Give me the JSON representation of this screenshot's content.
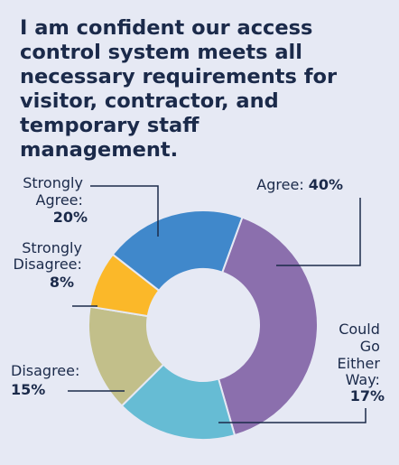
{
  "chart_data": {
    "type": "pie",
    "style": "donut",
    "title_lines": [
      "I am confident our access",
      "control system meets all",
      "necessary requirements for",
      "visitor, contractor, and",
      "temporary staff",
      "management."
    ],
    "start_angle_deg": 20,
    "direction": "clockwise",
    "slices": [
      {
        "category": "Agree",
        "value": 40,
        "color": "#8b6fad",
        "label_lines": [
          "Agree:"
        ],
        "value_label": "40%"
      },
      {
        "category": "Could Either Way",
        "value": 17,
        "color": "#66bcd4",
        "label_lines": [
          "Could",
          "Go",
          "Either",
          "Way:"
        ],
        "value_label": "17%"
      },
      {
        "category": "Disagree",
        "value": 15,
        "color": "#c2bf8a",
        "label_lines": [
          "Disagree:"
        ],
        "value_label": "15%"
      },
      {
        "category": "Strongly Disagree",
        "value": 8,
        "color": "#fbb829",
        "label_lines": [
          "Strongly",
          "Disagree:"
        ],
        "value_label": "8%"
      },
      {
        "category": "Strongly Agree",
        "value": 20,
        "color": "#4088cb",
        "label_lines": [
          "Strongly",
          "Agree:"
        ],
        "value_label": "20%"
      }
    ]
  }
}
